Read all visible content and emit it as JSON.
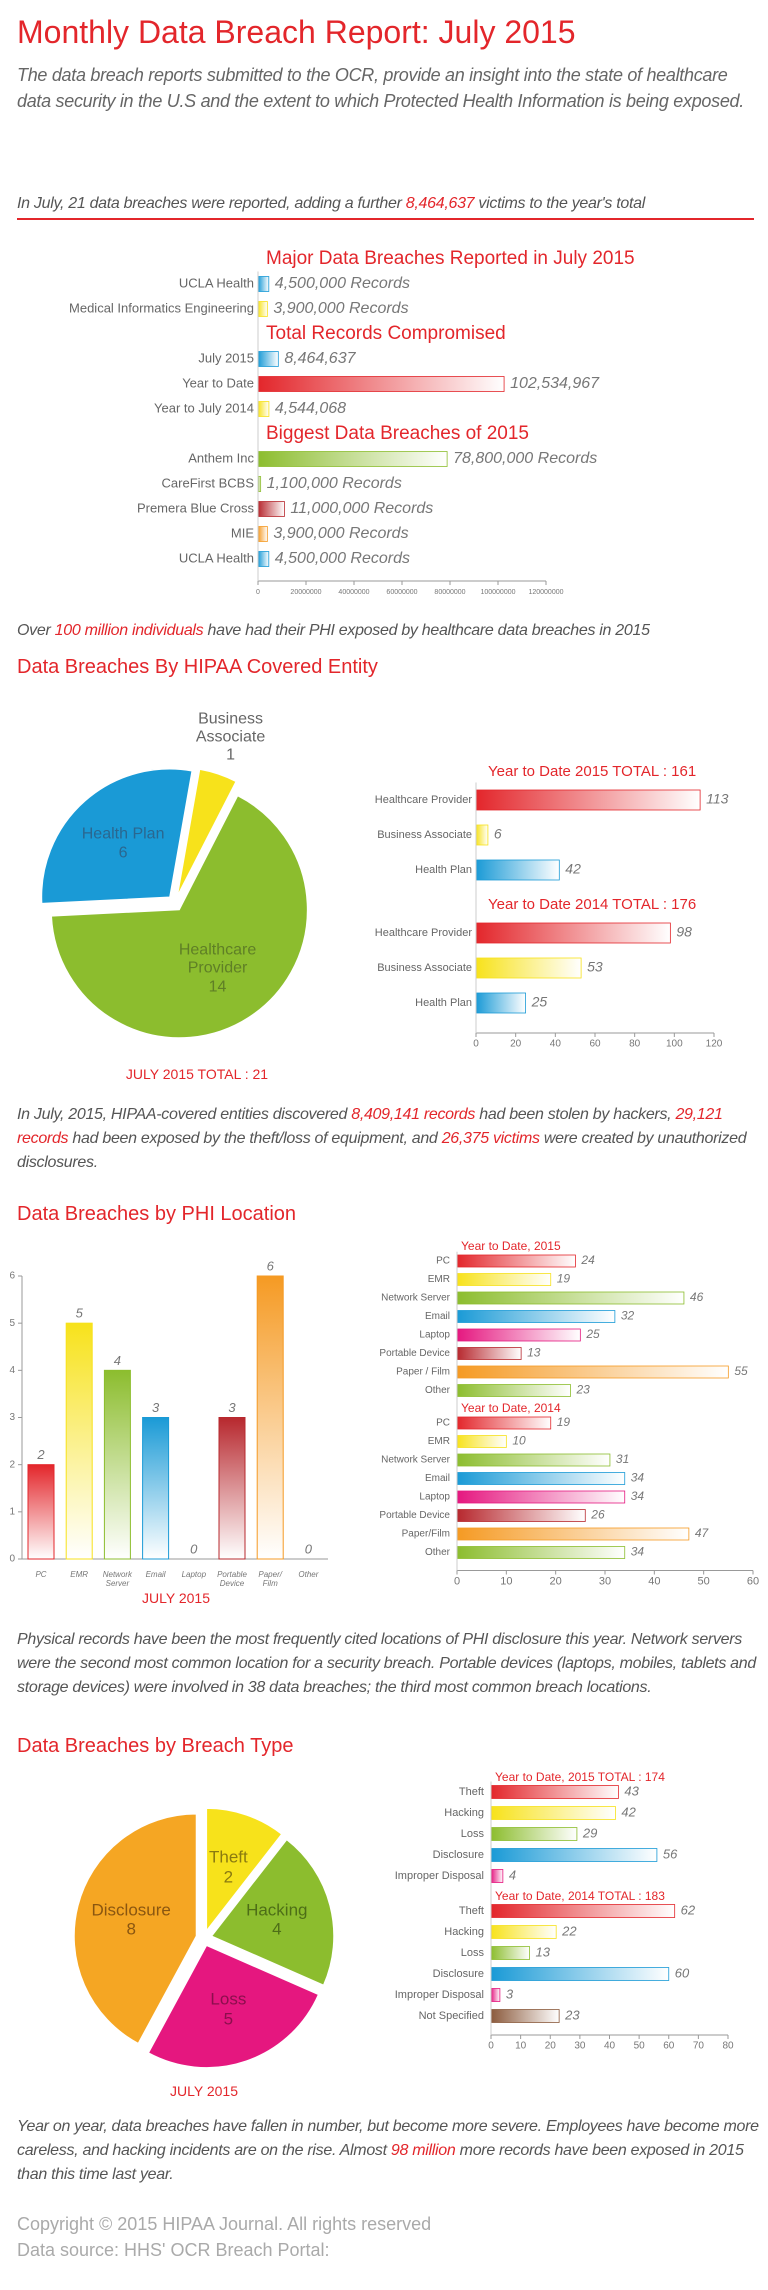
{
  "header": {
    "title": "Monthly Data Breach Report: July 2015",
    "intro": "The data breach reports submitted to the OCR, provide an insight into the state of healthcare data security in the U.S and the extent to which Protected Health Information is being exposed."
  },
  "paragraphs": [
    [
      {
        "text": "In July, 21 data breaches were reported, adding a further "
      },
      {
        "text": "8,464,637",
        "highlight": true
      },
      {
        "text": " victims to the year's total"
      }
    ],
    [
      {
        "text": "Over "
      },
      {
        "text": "100 million individuals",
        "highlight": true
      },
      {
        "text": " have had their PHI exposed by healthcare data breaches in 2015"
      }
    ],
    [
      {
        "text": "In July, 2015, HIPAA-covered entities discovered "
      },
      {
        "text": "8,409,141 records",
        "highlight": true
      },
      {
        "text": " had been stolen by hackers, "
      },
      {
        "text": "29,121 records",
        "highlight": true
      },
      {
        "text": " had been exposed by the theft/loss of equipment, and "
      },
      {
        "text": "26,375 victims",
        "highlight": true
      },
      {
        "text": " were created by unauthorized disclosures."
      }
    ],
    [
      {
        "text": "Physical records have been the most frequently cited locations of PHI disclosure this year. Network servers were the second most common location for a security breach. Portable devices (laptops, mobiles, tablets and storage devices) were involved in 38 data breaches; the third most common breach locations."
      }
    ],
    [
      {
        "text": "Year on year, data breaches have fallen in number, but become more severe. Employees have become more careless, and hacking incidents are on the rise. Almost "
      },
      {
        "text": "98 million",
        "highlight": true
      },
      {
        "text": " more records have been exposed in 2015 than this time last year."
      }
    ]
  ],
  "sections": [
    "Data Breaches By HIPAA Covered Entity",
    "Data Breaches by PHI Location",
    "Data Breaches by Breach Type"
  ],
  "chart_data": [
    {
      "type": "hbar",
      "groups": [
        {
          "title": "Major Data Breaches Reported in July 2015",
          "categories": [
            "UCLA Health",
            "Medical Informatics Engineering"
          ],
          "values": [
            4500000,
            3900000
          ],
          "value_labels": [
            "4,500,000 Records",
            "3,900,000 Records"
          ],
          "colors": [
            "#1a9ad6",
            "#f7e21b"
          ]
        },
        {
          "title": "Total Records Compromised",
          "categories": [
            "July 2015",
            "Year to Date",
            "Year to July 2014"
          ],
          "values": [
            8464637,
            102534967,
            4544068
          ],
          "value_labels": [
            "8,464,637",
            "102,534,967",
            "4,544,068"
          ],
          "colors": [
            "#1a9ad6",
            "#e3262b",
            "#f7e21b"
          ]
        },
        {
          "title": "Biggest Data Breaches of 2015",
          "categories": [
            "Anthem Inc",
            "CareFirst BCBS",
            "Premera Blue Cross",
            "MIE",
            "UCLA Health"
          ],
          "values": [
            78800000,
            1100000,
            11000000,
            3900000,
            4500000
          ],
          "value_labels": [
            "78,800,000 Records",
            "1,100,000 Records",
            "11,000,000 Records",
            "3,900,000 Records",
            "4,500,000 Records"
          ],
          "colors": [
            "#8cbd2e",
            "#8cbd2e",
            "#b7282e",
            "#f59a23",
            "#1a9ad6"
          ]
        }
      ],
      "xlim": [
        0,
        120000000
      ],
      "xticks": [
        0,
        20000000,
        40000000,
        60000000,
        80000000,
        100000000,
        120000000
      ]
    },
    {
      "type": "pie",
      "categories": [
        "Business Associate",
        "Healthcare Provider",
        "Health Plan"
      ],
      "values": [
        1,
        14,
        6
      ],
      "colors": [
        "#f7e21b",
        "#8cbd2e",
        "#1a9ad6"
      ],
      "label_colors": [
        "#666666",
        "#5f7f26",
        "#2a6790"
      ],
      "caption": "JULY 2015 TOTAL : 21"
    },
    {
      "type": "hbar",
      "groups": [
        {
          "title": "Year to Date 2015 TOTAL : 161",
          "categories": [
            "Healthcare Provider",
            "Business Associate",
            "Health Plan"
          ],
          "values": [
            113,
            6,
            42
          ],
          "colors": [
            "#e3262b",
            "#f7e21b",
            "#1a9ad6"
          ]
        },
        {
          "title": "Year to Date 2014 TOTAL : 176",
          "categories": [
            "Healthcare Provider",
            "Business Associate",
            "Health Plan"
          ],
          "values": [
            98,
            53,
            25
          ],
          "colors": [
            "#e3262b",
            "#f7e21b",
            "#1a9ad6"
          ]
        }
      ],
      "xlim": [
        0,
        120
      ],
      "xticks": [
        0,
        20,
        40,
        60,
        80,
        100,
        120
      ]
    },
    {
      "type": "bar",
      "categories": [
        "PC",
        "EMR",
        "Network Server",
        "Email",
        "Laptop",
        "Portable Device",
        "Paper/ Film",
        "Other"
      ],
      "values": [
        2,
        5,
        4,
        3,
        0,
        3,
        6,
        0
      ],
      "colors": [
        "#e3262b",
        "#f7e21b",
        "#8cbd2e",
        "#1a9ad6",
        "#e5177f",
        "#b7282e",
        "#f59a23",
        "#8cbd2e"
      ],
      "ylim": [
        0,
        6
      ],
      "yticks": [
        0,
        1,
        2,
        3,
        4,
        5,
        6
      ],
      "caption": "JULY 2015"
    },
    {
      "type": "hbar",
      "groups": [
        {
          "title": "Year to Date, 2015",
          "categories": [
            "PC",
            "EMR",
            "Network Server",
            "Email",
            "Laptop",
            "Portable Device",
            "Paper / Film",
            "Other"
          ],
          "values": [
            24,
            19,
            46,
            32,
            25,
            13,
            55,
            23
          ],
          "colors": [
            "#e3262b",
            "#f7e21b",
            "#8cbd2e",
            "#1a9ad6",
            "#e5177f",
            "#b7282e",
            "#f59a23",
            "#8cbd2e"
          ]
        },
        {
          "title": "Year to Date, 2014",
          "categories": [
            "PC",
            "EMR",
            "Network Server",
            "Email",
            "Laptop",
            "Portable Device",
            "Paper/Film",
            "Other"
          ],
          "values": [
            19,
            10,
            31,
            34,
            34,
            26,
            47,
            34
          ],
          "colors": [
            "#e3262b",
            "#f7e21b",
            "#8cbd2e",
            "#1a9ad6",
            "#e5177f",
            "#b7282e",
            "#f59a23",
            "#8cbd2e"
          ]
        }
      ],
      "xlim": [
        0,
        60
      ],
      "xticks": [
        0,
        10,
        20,
        30,
        40,
        50,
        60
      ]
    },
    {
      "type": "pie",
      "categories": [
        "Theft",
        "Hacking",
        "Loss",
        "Disclosure"
      ],
      "values": [
        2,
        4,
        5,
        8
      ],
      "colors": [
        "#f7e21b",
        "#8cbd2e",
        "#e5177f",
        "#f5a623"
      ],
      "label_colors": [
        "#8a7a10",
        "#4d6e17",
        "#8c0e4d",
        "#8a5610"
      ],
      "caption": "JULY 2015"
    },
    {
      "type": "hbar",
      "groups": [
        {
          "title": "Year to Date, 2015 TOTAL : 174",
          "categories": [
            "Theft",
            "Hacking",
            "Loss",
            "Disclosure",
            "Improper Disposal"
          ],
          "values": [
            43,
            42,
            29,
            56,
            4
          ],
          "colors": [
            "#e3262b",
            "#f7e21b",
            "#8cbd2e",
            "#1a9ad6",
            "#e5177f"
          ]
        },
        {
          "title": "Year to Date, 2014 TOTAL : 183",
          "categories": [
            "Theft",
            "Hacking",
            "Loss",
            "Disclosure",
            "Improper Disposal",
            "Not Specified"
          ],
          "values": [
            62,
            22,
            13,
            60,
            3,
            23
          ],
          "colors": [
            "#e3262b",
            "#f7e21b",
            "#8cbd2e",
            "#1a9ad6",
            "#e5177f",
            "#8b5a3c"
          ]
        }
      ],
      "xlim": [
        0,
        80
      ],
      "xticks": [
        0,
        10,
        20,
        30,
        40,
        50,
        60,
        70,
        80
      ]
    }
  ],
  "footer": {
    "copyright": "Copyright © 2015 HIPAA Journal. All rights reserved",
    "source": "Data source: HHS' OCR Breach Portal:"
  }
}
